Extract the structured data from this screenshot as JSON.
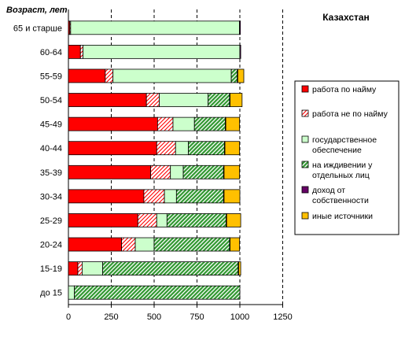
{
  "chart_data": {
    "type": "bar",
    "orientation": "horizontal",
    "stacked": true,
    "title": "Казахстан",
    "ylabel": "Возраст, лет",
    "xlabel": "",
    "xlim": [
      0,
      1250
    ],
    "xticks": [
      "0",
      "250",
      "500",
      "750",
      "1000",
      "1250"
    ],
    "grid": true,
    "legend_position": "right",
    "categories": [
      "65 и старше",
      "60-64",
      "55-59",
      "50-54",
      "45-49",
      "40-44",
      "35-39",
      "30-34",
      "25-29",
      "20-24",
      "15-19",
      "до 15"
    ],
    "series": [
      {
        "name": "работа по найму",
        "color": "#ff0000",
        "pattern": "solid",
        "values": [
          8,
          70,
          215,
          455,
          520,
          515,
          480,
          440,
          405,
          310,
          55,
          0
        ]
      },
      {
        "name": "работа не по найму",
        "color": "#ff0000",
        "pattern": "hatch",
        "values": [
          5,
          15,
          45,
          75,
          90,
          110,
          115,
          120,
          110,
          80,
          25,
          0
        ]
      },
      {
        "name": "государственное обеспечение",
        "color": "#ccffcc",
        "pattern": "solid",
        "values": [
          985,
          915,
          690,
          285,
          125,
          75,
          75,
          70,
          60,
          110,
          120,
          35
        ]
      },
      {
        "name": "на иждивении у отдельных лиц",
        "color": "#339933",
        "pattern": "hatch",
        "values": [
          0,
          0,
          35,
          125,
          180,
          210,
          235,
          275,
          345,
          440,
          790,
          965
        ]
      },
      {
        "name": "доход от собственности",
        "color": "#660066",
        "pattern": "solid",
        "values": [
          5,
          5,
          3,
          3,
          3,
          3,
          3,
          3,
          3,
          3,
          3,
          0
        ]
      },
      {
        "name": "иные источники",
        "color": "#ffc000",
        "pattern": "solid",
        "values": [
          0,
          0,
          35,
          70,
          80,
          85,
          90,
          92,
          82,
          55,
          12,
          0
        ]
      }
    ]
  }
}
